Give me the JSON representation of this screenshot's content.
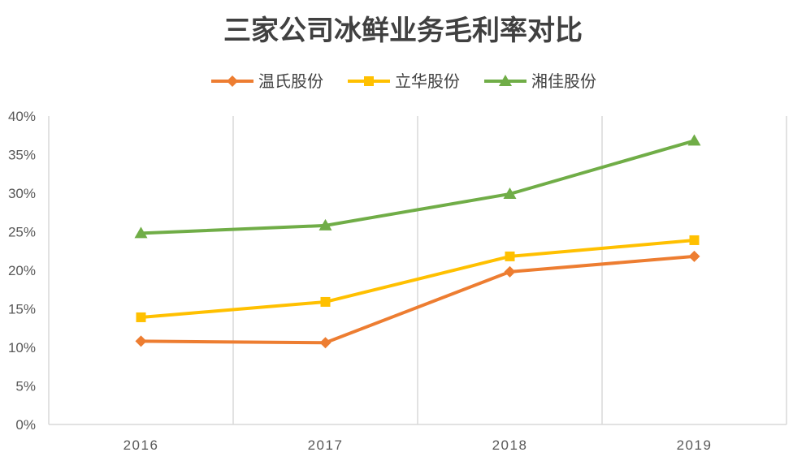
{
  "chart_data": {
    "type": "line",
    "title": "三家公司冰鲜业务毛利率对比",
    "xlabel": "",
    "ylabel": "",
    "categories": [
      "2016",
      "2017",
      "2018",
      "2019"
    ],
    "ylim": [
      0,
      40
    ],
    "yticks": [
      0,
      5,
      10,
      15,
      20,
      25,
      30,
      35,
      40
    ],
    "ytick_labels": [
      "0%",
      "5%",
      "10%",
      "15%",
      "20%",
      "25%",
      "30%",
      "35%",
      "40%"
    ],
    "grid": {
      "vertical": true,
      "horizontal": false
    },
    "legend_position": "top-center",
    "series": [
      {
        "name": "温氏股份",
        "values": [
          10.8,
          10.6,
          19.8,
          21.8
        ],
        "color": "#ED7D31",
        "marker": "diamond"
      },
      {
        "name": "立华股份",
        "values": [
          13.9,
          15.9,
          21.8,
          23.9
        ],
        "color": "#FFC000",
        "marker": "square"
      },
      {
        "name": "湘佳股份",
        "values": [
          24.8,
          25.8,
          29.9,
          36.8
        ],
        "color": "#70AD47",
        "marker": "triangle"
      }
    ]
  }
}
